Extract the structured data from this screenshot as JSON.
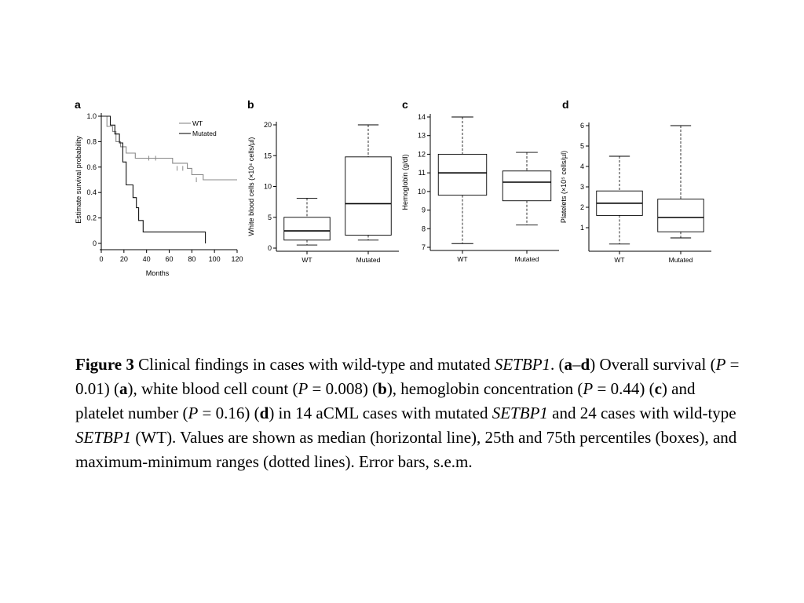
{
  "chart_data": [
    {
      "panel": "a",
      "type": "line",
      "title": "",
      "xlabel": "Months",
      "ylabel": "Estimate survival probability",
      "xlim": [
        0,
        120
      ],
      "ylim": [
        0,
        1.0
      ],
      "xticks": [
        "0",
        "20",
        "40",
        "60",
        "80",
        "100",
        "120"
      ],
      "yticks": [
        "0",
        "0.2",
        "0.4",
        "0.6",
        "0.8",
        "1.0"
      ],
      "legend": "top-right",
      "series": [
        {
          "name": "WT",
          "color": "#888888",
          "x": [
            0,
            5,
            5,
            10,
            10,
            13,
            13,
            17,
            17,
            22,
            22,
            30,
            30,
            63,
            63,
            76,
            76,
            80,
            80,
            90,
            90,
            120
          ],
          "y": [
            1.0,
            1.0,
            0.92,
            0.92,
            0.88,
            0.88,
            0.8,
            0.8,
            0.76,
            0.76,
            0.71,
            0.71,
            0.67,
            0.67,
            0.63,
            0.63,
            0.59,
            0.59,
            0.54,
            0.54,
            0.5,
            0.5
          ],
          "censored_x": [
            42,
            48,
            67,
            72,
            84
          ],
          "censored_y": [
            0.67,
            0.67,
            0.59,
            0.59,
            0.5
          ]
        },
        {
          "name": "Mutated",
          "color": "#111111",
          "x": [
            0,
            8,
            8,
            12,
            12,
            16,
            16,
            19,
            19,
            22,
            22,
            26,
            26,
            28,
            28,
            31,
            31,
            33,
            33,
            37,
            37,
            92,
            92
          ],
          "y": [
            1.0,
            1.0,
            0.93,
            0.93,
            0.86,
            0.86,
            0.79,
            0.79,
            0.64,
            0.64,
            0.46,
            0.46,
            0.46,
            0.46,
            0.36,
            0.36,
            0.28,
            0.28,
            0.18,
            0.18,
            0.09,
            0.09,
            0.0
          ]
        }
      ]
    },
    {
      "panel": "b",
      "type": "box",
      "title": "",
      "ylabel": "White blood cells (×10⁴ cells/µl)",
      "ylim": [
        0,
        20
      ],
      "yticks": [
        "0",
        "5",
        "10",
        "15",
        "20"
      ],
      "categories": [
        "WT",
        "Mutated"
      ],
      "boxes": [
        {
          "min": 0.5,
          "q1": 1.3,
          "median": 2.8,
          "q3": 5.0,
          "max": 8.1
        },
        {
          "min": 1.3,
          "q1": 2.1,
          "median": 7.2,
          "q3": 14.8,
          "max": 20.0
        }
      ]
    },
    {
      "panel": "c",
      "type": "box",
      "title": "",
      "ylabel": "Hemoglobin (g/dl)",
      "ylim": [
        7,
        14
      ],
      "yticks": [
        "7",
        "8",
        "9",
        "10",
        "11",
        "12",
        "13",
        "14"
      ],
      "categories": [
        "WT",
        "Mutated"
      ],
      "boxes": [
        {
          "min": 7.2,
          "q1": 9.8,
          "median": 11.0,
          "q3": 12.0,
          "max": 14.0
        },
        {
          "min": 8.2,
          "q1": 9.5,
          "median": 10.5,
          "q3": 11.1,
          "max": 12.1
        }
      ]
    },
    {
      "panel": "d",
      "type": "box",
      "title": "",
      "ylabel": "Platelets (×10⁵ cells/µl)",
      "ylim": [
        0,
        6
      ],
      "yticks": [
        "1",
        "2",
        "3",
        "4",
        "5",
        "6"
      ],
      "categories": [
        "WT",
        "Mutated"
      ],
      "boxes": [
        {
          "min": 0.2,
          "q1": 1.6,
          "median": 2.2,
          "q3": 2.8,
          "max": 4.5
        },
        {
          "min": 0.5,
          "q1": 0.8,
          "median": 1.5,
          "q3": 2.4,
          "max": 6.0
        }
      ]
    }
  ],
  "caption": {
    "figure_label": "Figure 3",
    "t1": " Clinical findings in cases with wild-type and mutated ",
    "gene1": "SETBP1",
    "t2": ". (",
    "a1": "a",
    "dash": "–",
    "d1": "d",
    "t3": ") Overall survival (",
    "p1": "P",
    "t4": " = 0.01) (",
    "a2": "a",
    "t5": "), white blood cell count (",
    "p2": "P",
    "t6": " = 0.008) (",
    "b2": "b",
    "t7": "), hemoglobin concentration (",
    "p3": "P",
    "t8": " = 0.44) (",
    "c2": "c",
    "t9": ") and platelet number (",
    "p4": "P",
    "t10": " = 0.16) (",
    "d2": "d",
    "t11": ") in 14 aCML cases with mutated ",
    "gene2": "SETBP1",
    "t12": " and 24 cases with wild-type ",
    "gene3": "SETBP1",
    "t13": " (WT). Values are shown as median (horizontal line), 25th and 75th percentiles (boxes), and maximum-minimum ranges (dotted lines). Error bars, s.e.m."
  }
}
